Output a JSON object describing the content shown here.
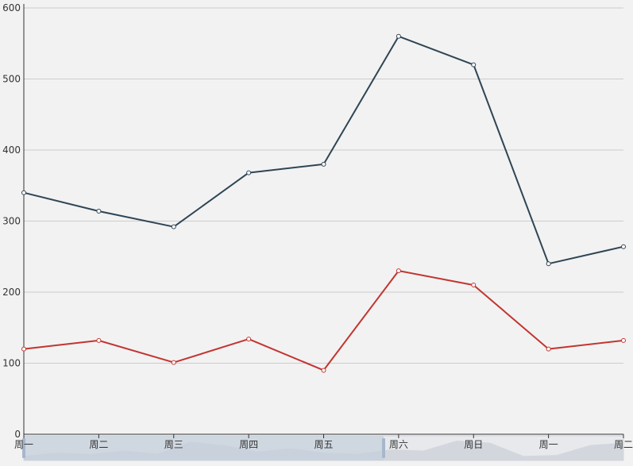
{
  "chart_data": {
    "type": "line",
    "categories": [
      "周一",
      "周二",
      "周三",
      "周四",
      "周五",
      "周六",
      "周日",
      "周一",
      "周二"
    ],
    "series": [
      {
        "color": "#2f4554",
        "values": [
          340,
          314,
          292,
          368,
          380,
          560,
          520,
          240,
          264
        ]
      },
      {
        "color": "#c23531",
        "values": [
          120,
          132,
          101,
          134,
          90,
          230,
          210,
          120,
          132
        ]
      }
    ],
    "ylim": [
      0,
      600
    ],
    "yticks": [
      0,
      100,
      200,
      300,
      400,
      500,
      600
    ],
    "grid": true,
    "dataZoom": {
      "start_fraction": 0,
      "end_fraction": 0.6,
      "fill_color": "#c5cfdb",
      "shadow_values": [
        20,
        35,
        28,
        45,
        30,
        85,
        70,
        40,
        55,
        35,
        30,
        50,
        45,
        90,
        80,
        20,
        25,
        70,
        80
      ]
    },
    "colors": {
      "background": "#f2f2f2",
      "axis": "#333333",
      "gridline": "#cccccc"
    }
  }
}
